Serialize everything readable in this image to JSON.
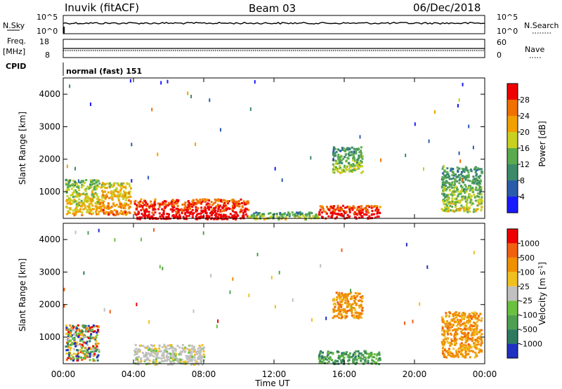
{
  "header": {
    "station": "Inuvik (fitACF)",
    "beam": "Beam 03",
    "date": "06/Dec/2018"
  },
  "panel_labels": {
    "nsky": "N.Sky",
    "nsky_top": "10^5",
    "nsky_bottom": "10^0",
    "nsearch": "N.Search",
    "nsearch_top": "10^5",
    "nsearch_bottom": "10^0",
    "freq": "Freq.",
    "freq_unit": "[MHz]",
    "freq_top": "18",
    "freq_bottom": "8",
    "nave": "Nave",
    "nave_top": "60",
    "nave_bottom": "0",
    "cpid": "CPID",
    "cpid_value": "normal (fast) 151"
  },
  "chart_data": [
    {
      "type": "heatmap",
      "title": "",
      "xlabel": "Time UT",
      "ylabel": "Slant Range [km]",
      "x_ticks": [
        "00:00",
        "04:00",
        "08:00",
        "12:00",
        "16:00",
        "20:00",
        "00:00"
      ],
      "y_ticks": [
        "1000",
        "2000",
        "3000",
        "4000"
      ],
      "ylim": [
        180,
        4500
      ],
      "colorbar": {
        "label": "Power [dB]",
        "ticks": [
          "4",
          "8",
          "12",
          "16",
          "20",
          "24",
          "28"
        ],
        "colors": [
          "#1a1aff",
          "#2a5caa",
          "#3c8a6a",
          "#5aaa50",
          "#c8d020",
          "#f0a000",
          "#f07000",
          "#ee0000"
        ]
      },
      "regions": [
        {
          "x": [
            0.1,
            2.0
          ],
          "y": [
            300,
            1400
          ],
          "level": 4
        },
        {
          "x": [
            2.0,
            3.8
          ],
          "y": [
            300,
            1300
          ],
          "level": 5
        },
        {
          "x": [
            4.0,
            10.5
          ],
          "y": [
            180,
            800
          ],
          "level": 7
        },
        {
          "x": [
            10.5,
            14.5
          ],
          "y": [
            180,
            400
          ],
          "level": 3
        },
        {
          "x": [
            14.5,
            18.0
          ],
          "y": [
            200,
            600
          ],
          "level": 7
        },
        {
          "x": [
            15.3,
            17.0
          ],
          "y": [
            1600,
            2400
          ],
          "level": 3
        },
        {
          "x": [
            21.5,
            23.8
          ],
          "y": [
            400,
            1800
          ],
          "level": 3
        }
      ]
    },
    {
      "type": "heatmap",
      "title": "",
      "xlabel": "Time UT",
      "ylabel": "Slant Range [km]",
      "x_ticks": [
        "00:00",
        "04:00",
        "08:00",
        "12:00",
        "16:00",
        "20:00",
        "00:00"
      ],
      "y_ticks": [
        "1000",
        "2000",
        "3000",
        "4000"
      ],
      "ylim": [
        180,
        4500
      ],
      "colorbar": {
        "label": "Velocity [m s^-1]",
        "ticks": [
          "1000",
          "500",
          "100",
          "25",
          "-25",
          "-100",
          "-500",
          "-1000"
        ],
        "colors": [
          "#2030c0",
          "#2e7a60",
          "#4ea050",
          "#6cc040",
          "#c0c0c0",
          "#f0c020",
          "#f09000",
          "#f06010",
          "#ee0000"
        ]
      },
      "regions": [
        {
          "x": [
            0.1,
            2.0
          ],
          "y": [
            300,
            1400
          ],
          "vel": "mixed"
        },
        {
          "x": [
            4.0,
            8.0
          ],
          "y": [
            180,
            800
          ],
          "vel": "gray"
        },
        {
          "x": [
            14.5,
            18.0
          ],
          "y": [
            200,
            600
          ],
          "vel": "green"
        },
        {
          "x": [
            15.3,
            17.0
          ],
          "y": [
            1600,
            2400
          ],
          "vel": "orange"
        },
        {
          "x": [
            21.5,
            23.8
          ],
          "y": [
            400,
            1800
          ],
          "vel": "orange"
        }
      ]
    }
  ]
}
